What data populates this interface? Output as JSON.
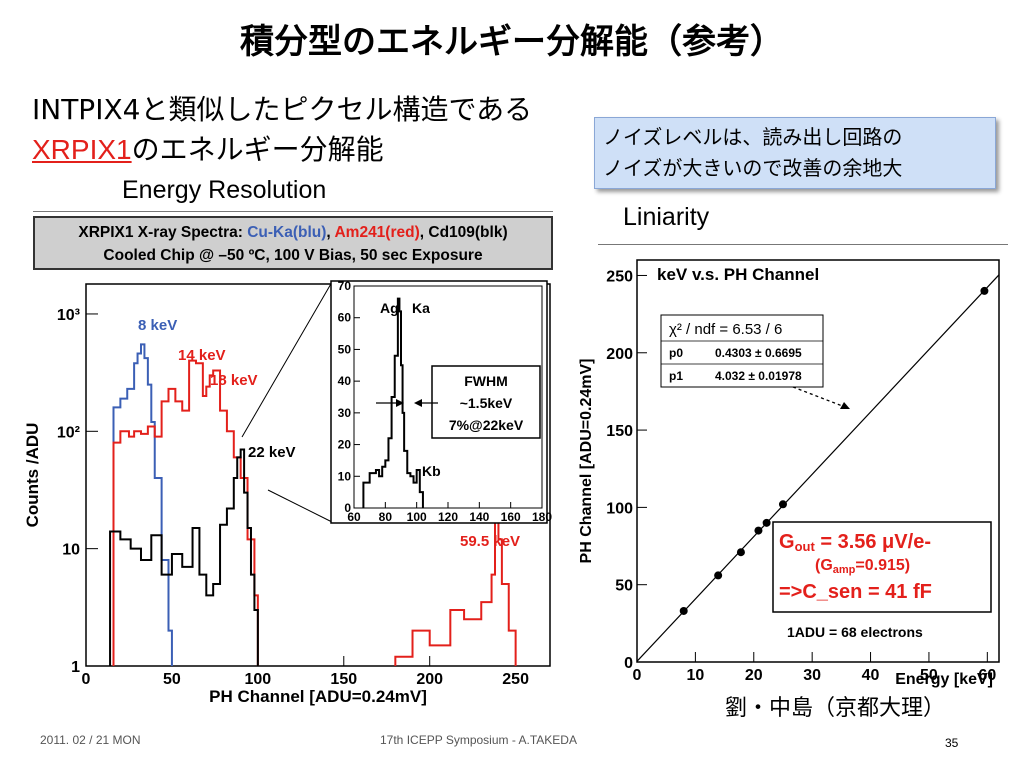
{
  "slide": {
    "title": "積分型のエネルギー分解能（参考）",
    "subtitle_line1": "INTPIX4と類似したピクセル構造である",
    "subtitle_red": "XRPIX1",
    "subtitle_line2_rest": "のエネルギー分解能",
    "label_energy_resolution": "Energy Resolution",
    "label_liniarity": "Liniarity",
    "note_line1": "ノイズレベルは、読み出し回路の",
    "note_line2": "ノイズが大きいので改善の余地大",
    "credit": "劉・中島（京都大理）",
    "footer_date": "2011. 02 / 21 MON",
    "footer_event": "17th ICEPP Symposium - A.TAKEDA",
    "page_number": "35"
  },
  "spectrum_header": {
    "line1_prefix": "XRPIX1 X-ray Spectra: ",
    "line1_blue": "Cu-Ka(blu)",
    "line1_sep1": ", ",
    "line1_red": "Am241(red)",
    "line1_sep2": ", ",
    "line1_black": "Cd109(blk)",
    "line2": "Cooled Chip @ –50 ºC, 100 V Bias, 50 sec Exposure"
  },
  "chart_data": [
    {
      "type": "line",
      "xlabel": "PH Channel [ADU=0.24mV]",
      "ylabel": "Counts /ADU",
      "xlim": [
        0,
        270
      ],
      "ylim": [
        1,
        1800
      ],
      "yscale": "log",
      "x_ticks": [
        "0",
        "50",
        "100",
        "150",
        "200",
        "250"
      ],
      "y_ticks": [
        "1",
        "10",
        "10²",
        "10³"
      ],
      "annotations": [
        "8 keV",
        "14 keV",
        "18 keV",
        "22 keV",
        "59.5 keV"
      ],
      "colors": {
        "blue": "#3b5fb5",
        "red": "#e3201b",
        "black": "#000000"
      },
      "series": [
        {
          "color": "blue",
          "x": [
            16,
            20,
            24,
            28,
            30,
            32,
            34,
            36,
            38,
            40,
            44,
            48,
            50
          ],
          "y": [
            160,
            190,
            230,
            380,
            460,
            550,
            420,
            250,
            120,
            40,
            8,
            2,
            1
          ]
        },
        {
          "color": "red",
          "x": [
            16,
            20,
            25,
            28,
            32,
            36,
            40,
            44,
            48,
            52,
            56,
            60,
            64,
            68,
            70,
            72,
            74,
            78,
            82,
            86,
            90,
            94,
            98,
            100
          ],
          "y": [
            80,
            100,
            90,
            100,
            95,
            110,
            90,
            180,
            230,
            180,
            150,
            400,
            380,
            200,
            240,
            300,
            330,
            150,
            100,
            60,
            40,
            12,
            4,
            1
          ]
        },
        {
          "color": "black",
          "x": [
            14,
            20,
            26,
            32,
            38,
            44,
            50,
            56,
            62,
            66,
            70,
            74,
            78,
            82,
            86,
            88,
            90,
            92,
            94,
            96,
            98,
            100
          ],
          "y": [
            14,
            12,
            10,
            8,
            13,
            6,
            9,
            7,
            15,
            6,
            4,
            5,
            16,
            22,
            40,
            60,
            70,
            30,
            15,
            6,
            3,
            1
          ]
        },
        {
          "color": "red",
          "x": [
            180,
            190,
            200,
            212,
            220,
            230,
            236,
            238,
            240,
            242,
            246,
            250
          ],
          "y": [
            1.2,
            2,
            1.5,
            3,
            2.5,
            3.5,
            6,
            25,
            12,
            5,
            2,
            1
          ]
        }
      ]
    },
    {
      "type": "line",
      "title": "",
      "xlim": [
        60,
        180
      ],
      "ylim": [
        0,
        70
      ],
      "x_ticks": [
        "60",
        "80",
        "100",
        "120",
        "140",
        "160",
        "180"
      ],
      "y_ticks": [
        "0",
        "10",
        "20",
        "30",
        "40",
        "50",
        "60",
        "70"
      ],
      "annotations": [
        "Ag",
        "Ka",
        "Kb"
      ],
      "fwhm_box": [
        "FWHM",
        "~1.5keV",
        "7%@22keV"
      ],
      "x": [
        66,
        70,
        74,
        76,
        78,
        80,
        82,
        84,
        86,
        88,
        89,
        90,
        91,
        92,
        94,
        96,
        98,
        100,
        102,
        104
      ],
      "y": [
        8,
        11,
        12,
        10,
        13,
        15,
        22,
        35,
        48,
        66,
        62,
        45,
        30,
        18,
        11,
        10,
        8,
        12,
        5,
        0
      ]
    },
    {
      "type": "scatter",
      "title": "keV v.s. PH Channel",
      "xlabel": "Energy [keV]",
      "ylabel": "PH Channel [ADU=0.24mV]",
      "xlim": [
        0,
        62
      ],
      "ylim": [
        0,
        260
      ],
      "x_ticks": [
        "0",
        "10",
        "20",
        "30",
        "40",
        "50",
        "60"
      ],
      "y_ticks": [
        "0",
        "50",
        "100",
        "150",
        "200",
        "250"
      ],
      "points": {
        "x": [
          8.0,
          13.9,
          17.8,
          20.8,
          22.2,
          25.0,
          59.5
        ],
        "y": [
          33,
          56,
          71,
          85,
          90,
          102,
          240
        ]
      },
      "fit": {
        "p0": 0.4303,
        "p1": 4.032
      },
      "fit_box": {
        "chi_label": "χ² / ndf =  6.53 / 6",
        "p0_label": "p0",
        "p0_value": "0.4303 ± 0.6695",
        "p1_label": "p1",
        "p1_value": "4.032 ± 0.01978"
      },
      "gain_box": {
        "g_out_main": "G",
        "g_out_sub": "out",
        "g_out_rest": " = 3.56 μV/e-",
        "g_amp_open": "(G",
        "g_amp_sub": "amp",
        "g_amp_rest": "=0.915)",
        "c_sen": "=>C_sen = 41 fF"
      },
      "adu_note": "1ADU = 68 electrons"
    }
  ]
}
